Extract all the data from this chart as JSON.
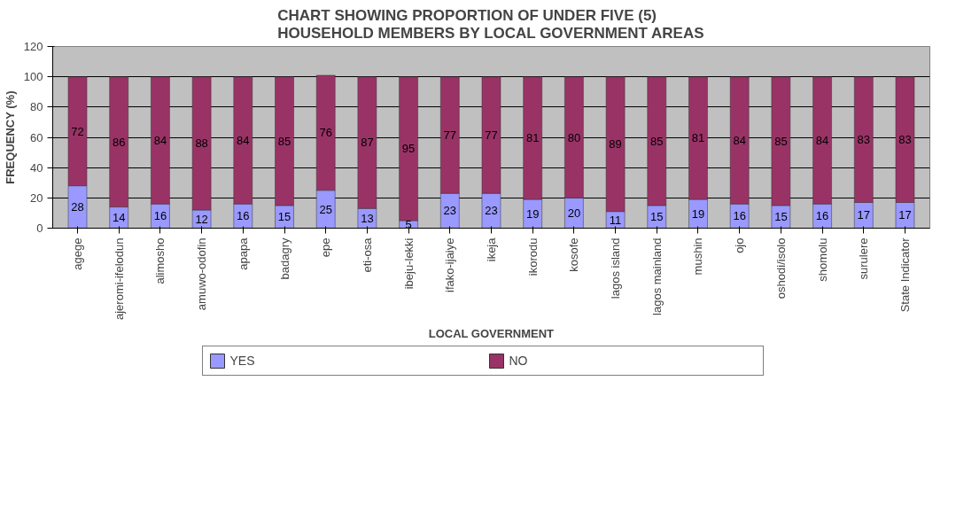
{
  "chart_data": {
    "type": "bar",
    "stacked": true,
    "title": "CHART SHOWING PROPORTION OF UNDER FIVE (5)\nHOUSEHOLD MEMBERS BY LOCAL GOVERNMENT AREAS",
    "xlabel": "LOCAL GOVERNMENT",
    "ylabel": "FREQUENCY (%)",
    "categories": [
      "agege",
      "ajeromi-ifelodun",
      "alimosho",
      "amuwo-odofin",
      "apapa",
      "badagry",
      "epe",
      "eti-osa",
      "ibeju-lekki",
      "ifako-ijaiye",
      "ikeja",
      "ikorodu",
      "kosofe",
      "lagos island",
      "lagos mainland",
      "mushin",
      "ojo",
      "oshodi/isolo",
      "shomolu",
      "surulere",
      "State Indicator"
    ],
    "series": [
      {
        "name": "YES",
        "color": "#9999ff",
        "values": [
          28,
          14,
          16,
          12,
          16,
          15,
          25,
          13,
          5,
          23,
          23,
          19,
          20,
          11,
          15,
          19,
          16,
          15,
          16,
          17,
          17
        ]
      },
      {
        "name": "NO",
        "color": "#993366",
        "values": [
          72,
          86,
          84,
          88,
          84,
          85,
          76,
          87,
          95,
          77,
          77,
          81,
          80,
          89,
          85,
          81,
          84,
          85,
          84,
          83,
          83
        ]
      }
    ],
    "ylim": [
      0,
      120
    ],
    "yticks": [
      0,
      20,
      40,
      60,
      80,
      100,
      120
    ],
    "grid": "y",
    "legend": "bottom",
    "data_labels": true
  }
}
